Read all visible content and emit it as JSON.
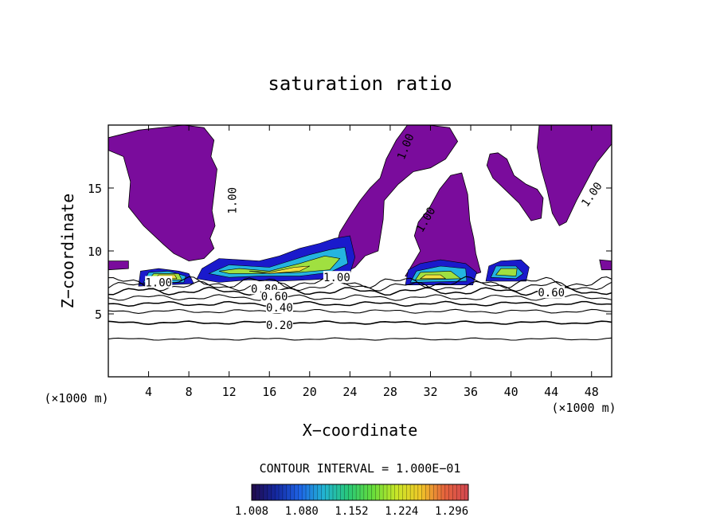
{
  "chart_data": {
    "type": "contour",
    "title": "saturation ratio",
    "xlabel": "X−coordinate",
    "ylabel": "Z−coordinate",
    "x_unit_left": "(×1000 m)",
    "x_unit_right": "(×1000 m)",
    "xlim": [
      0,
      50
    ],
    "ylim": [
      0,
      20
    ],
    "x_ticks": [
      4,
      8,
      12,
      16,
      20,
      24,
      28,
      32,
      36,
      40,
      44,
      48
    ],
    "x_tick_labels": [
      "4",
      "8",
      "12",
      "16",
      "20",
      "24",
      "28",
      "32",
      "36",
      "40",
      "44",
      "48"
    ],
    "y_ticks": [
      5,
      10,
      15
    ],
    "y_tick_labels": [
      "5",
      "10",
      "15"
    ],
    "contour_interval_text": "CONTOUR INTERVAL = 1.000E−01",
    "contour_labels": [
      {
        "text": "1.00",
        "x": 5.0,
        "z": 7.5,
        "rot": 0
      },
      {
        "text": "0.80",
        "x": 15.5,
        "z": 7.0,
        "rot": 0
      },
      {
        "text": "0.60",
        "x": 16.5,
        "z": 6.4,
        "rot": 0
      },
      {
        "text": "0.40",
        "x": 17.0,
        "z": 5.5,
        "rot": 0
      },
      {
        "text": "0.20",
        "x": 17.0,
        "z": 4.1,
        "rot": 0
      },
      {
        "text": "1.00",
        "x": 22.7,
        "z": 7.9,
        "rot": 0
      },
      {
        "text": "0.60",
        "x": 44.0,
        "z": 6.7,
        "rot": 0
      },
      {
        "text": "1.00",
        "x": 12.3,
        "z": 14.0,
        "rot": -90
      },
      {
        "text": "1.00",
        "x": 29.5,
        "z": 18.3,
        "rot": -68
      },
      {
        "text": "1.00",
        "x": 31.5,
        "z": 12.5,
        "rot": -60
      },
      {
        "text": "1.00",
        "x": 48.0,
        "z": 14.5,
        "rot": -55
      }
    ],
    "colorbar": {
      "min": 1.008,
      "max": 1.32,
      "tick_labels": [
        "1.008",
        "1.080",
        "1.152",
        "1.224",
        "1.296"
      ],
      "colors": [
        "#220a4a",
        "#1428a0",
        "#1e64e6",
        "#22b4d2",
        "#28c878",
        "#64dc3c",
        "#c8e628",
        "#f0c828",
        "#e6643c",
        "#d24650"
      ]
    },
    "colors": {
      "saturated": "#7a0c9c",
      "low_cloud": "#1a1acc",
      "mid_cloud": "#24b4e0",
      "high_cloud": "#a0e040",
      "peak_cloud": "#f0e040",
      "contour": "#000000"
    }
  }
}
